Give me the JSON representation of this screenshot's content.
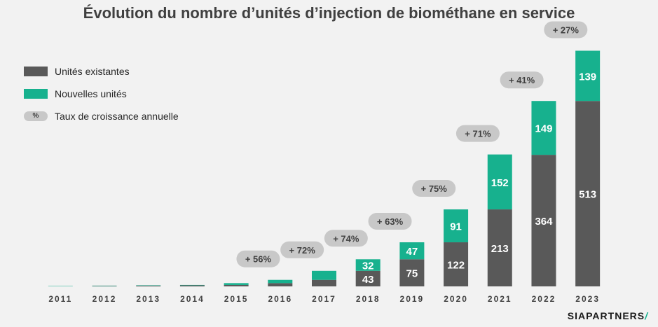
{
  "colors": {
    "existing": "#595959",
    "new": "#17b18e",
    "growth_pill": "#c8c8c8",
    "label_text": "#ffffff",
    "axis_text": "#404040"
  },
  "chart_data": {
    "type": "bar",
    "stacked": true,
    "title": "Évolution du nombre d’unités d’injection de biométhane en service",
    "categories": [
      "2011",
      "2012",
      "2013",
      "2014",
      "2015",
      "2016",
      "2017",
      "2018",
      "2019",
      "2020",
      "2021",
      "2022",
      "2023"
    ],
    "series": [
      {
        "name": "Unités existantes",
        "values": [
          0,
          1,
          2,
          3,
          4,
          9,
          18,
          43,
          75,
          122,
          213,
          364,
          513
        ]
      },
      {
        "name": "Nouvelles unités",
        "values": [
          1,
          1,
          1,
          1,
          5,
          9,
          25,
          32,
          47,
          91,
          152,
          149,
          139
        ]
      }
    ],
    "data_labels": {
      "existing": [
        "",
        "",
        "",
        "",
        "",
        "",
        "",
        "43",
        "75",
        "122",
        "213",
        "364",
        "513"
      ],
      "new": [
        "",
        "",
        "",
        "",
        "",
        "",
        "",
        "32",
        "47",
        "91",
        "152",
        "149",
        "139"
      ]
    },
    "growth_labels": [
      "",
      "",
      "",
      "",
      "+ 56%",
      "+ 72%",
      "+ 74%",
      "+ 63%",
      "+ 75%",
      "+ 71%",
      "+ 41%",
      "+ 27%"
    ],
    "growth_between": [
      "2015-2016",
      "2016-2017",
      "2017-2018",
      "2018-2019",
      "2019-2020",
      "2020-2021",
      "2021-2022",
      "2022-2023"
    ],
    "ylim": [
      0,
      680
    ],
    "grid": false,
    "legend": "top-left",
    "legend_entries": [
      {
        "label": "Unités existantes",
        "marker": "existing"
      },
      {
        "label": "Nouvelles unités",
        "marker": "new"
      },
      {
        "label": "Taux de croissance annuelle",
        "marker": "pill",
        "symbol": "%"
      }
    ]
  },
  "logo": {
    "text": "SIAPARTNERS",
    "slash": "/"
  }
}
